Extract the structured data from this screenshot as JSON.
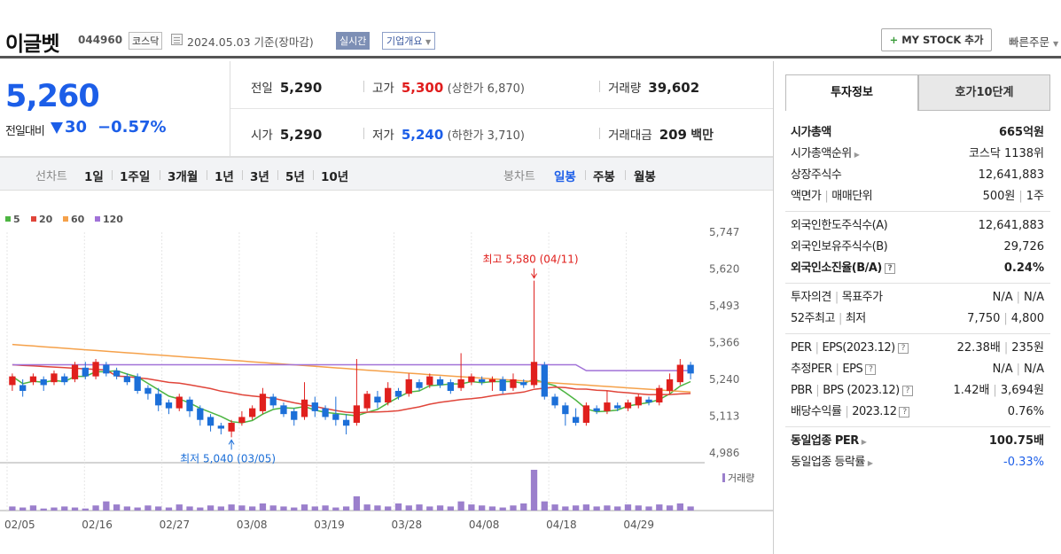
{
  "header": {
    "title": "이글벳",
    "code": "044960",
    "market": "코스닥",
    "date": "2024.05.03  기준(장마감)",
    "realtime": "실시간",
    "company_info": "기업개요",
    "mystock": "MY STOCK 추가",
    "quick_order": "빠른주문"
  },
  "price": {
    "current": "5,260",
    "change_label": "전일대비",
    "change": "30",
    "change_pct": "−0.57%",
    "prev_close_label": "전일",
    "prev_close": "5,290",
    "high_label": "고가",
    "high": "5,300",
    "upper_limit": "(상한가 6,870)",
    "volume_label": "거래량",
    "volume": "39,602",
    "open_label": "시가",
    "open": "5,290",
    "low_label": "저가",
    "low": "5,240",
    "lower_limit": "(하한가 3,710)",
    "amount_label": "거래대금",
    "amount": "209",
    "amount_unit": "백만"
  },
  "periods": {
    "line_label": "선차트",
    "line_items": [
      "1일",
      "1주일",
      "3개월",
      "1년",
      "3년",
      "5년",
      "10년"
    ],
    "candle_label": "봉차트",
    "candle_items": [
      "일봉",
      "주봉",
      "월봉"
    ],
    "candle_active": "일봉"
  },
  "tabs": [
    "투자정보",
    "호가10단계"
  ],
  "info": {
    "market_cap_label": "시가총액",
    "market_cap": "665억원",
    "cap_rank_label": "시가총액순위",
    "cap_rank": "코스닥 1138위",
    "shares_label": "상장주식수",
    "shares": "12,641,883",
    "par_label": "액면가",
    "unit_label": "매매단위",
    "par_unit": "500원",
    "unit_val": "1주",
    "foreign_limit_label": "외국인한도주식수(A)",
    "foreign_limit": "12,641,883",
    "foreign_hold_label": "외국인보유주식수(B)",
    "foreign_hold": "29,726",
    "foreign_ratio_label": "외국인소진율(B/A)",
    "foreign_ratio": "0.24%",
    "opinion_label": "투자의견",
    "target_label": "목표주가",
    "opinion": "N/A",
    "target": "N/A",
    "wk52_label": "52주최고",
    "wk52_low_label": "최저",
    "wk52_high": "7,750",
    "wk52_low": "4,800",
    "per_label": "PER",
    "eps_label": "EPS(2023.12)",
    "per": "22.38배",
    "eps": "235원",
    "est_per_label": "추정PER",
    "est_eps_label": "EPS",
    "est_per": "N/A",
    "est_eps": "N/A",
    "pbr_label": "PBR",
    "bps_label": "BPS (2023.12)",
    "pbr": "1.42배",
    "bps": "3,694원",
    "div_label": "배당수익률",
    "div_date": "2023.12",
    "div": "0.76%",
    "ind_per_label": "동일업종 PER",
    "ind_per": "100.75배",
    "ind_rate_label": "동일업종 등락률",
    "ind_rate": "-0.33%"
  },
  "chart_data": {
    "type": "candlestick",
    "legend": [
      {
        "name": "5",
        "color": "#4db542"
      },
      {
        "name": "20",
        "color": "#e0453a"
      },
      {
        "name": "60",
        "color": "#f5a14a"
      },
      {
        "name": "120",
        "color": "#a172d8"
      }
    ],
    "y_ticks": [
      "5,747",
      "5,620",
      "5,493",
      "5,366",
      "5,240",
      "5,113",
      "4,986"
    ],
    "y_range": [
      4986,
      5747
    ],
    "x_ticks": [
      "02/05",
      "02/16",
      "02/27",
      "03/08",
      "03/19",
      "03/28",
      "04/08",
      "04/18",
      "04/29"
    ],
    "annotations": {
      "high": "최고 5,580 (04/11)",
      "low": "최저 5,040 (03/05)"
    },
    "volume_label": "거래량",
    "candles": [
      [
        5220,
        5250,
        5200,
        5260
      ],
      [
        5220,
        5200,
        5180,
        5240
      ],
      [
        5230,
        5250,
        5220,
        5260
      ],
      [
        5240,
        5220,
        5200,
        5250
      ],
      [
        5230,
        5260,
        5220,
        5270
      ],
      [
        5250,
        5230,
        5220,
        5260
      ],
      [
        5240,
        5290,
        5230,
        5300
      ],
      [
        5280,
        5250,
        5240,
        5300
      ],
      [
        5250,
        5300,
        5240,
        5310
      ],
      [
        5290,
        5260,
        5250,
        5300
      ],
      [
        5270,
        5250,
        5240,
        5280
      ],
      [
        5250,
        5230,
        5220,
        5260
      ],
      [
        5250,
        5200,
        5190,
        5260
      ],
      [
        5210,
        5190,
        5170,
        5220
      ],
      [
        5190,
        5150,
        5130,
        5210
      ],
      [
        5160,
        5140,
        5120,
        5170
      ],
      [
        5140,
        5180,
        5130,
        5190
      ],
      [
        5170,
        5130,
        5110,
        5180
      ],
      [
        5140,
        5100,
        5080,
        5150
      ],
      [
        5110,
        5080,
        5060,
        5120
      ],
      [
        5080,
        5070,
        5050,
        5090
      ],
      [
        5060,
        5090,
        5040,
        5100
      ],
      [
        5090,
        5110,
        5080,
        5130
      ],
      [
        5110,
        5140,
        5100,
        5150
      ],
      [
        5130,
        5190,
        5120,
        5210
      ],
      [
        5180,
        5150,
        5140,
        5190
      ],
      [
        5150,
        5120,
        5110,
        5160
      ],
      [
        5130,
        5100,
        5080,
        5140
      ],
      [
        5110,
        5170,
        5100,
        5230
      ],
      [
        5160,
        5130,
        5110,
        5180
      ],
      [
        5140,
        5110,
        5100,
        5150
      ],
      [
        5120,
        5100,
        5080,
        5180
      ],
      [
        5100,
        5080,
        5050,
        5120
      ],
      [
        5090,
        5150,
        5080,
        5310
      ],
      [
        5140,
        5190,
        5130,
        5200
      ],
      [
        5180,
        5160,
        5140,
        5200
      ],
      [
        5160,
        5210,
        5150,
        5230
      ],
      [
        5200,
        5180,
        5170,
        5210
      ],
      [
        5190,
        5240,
        5180,
        5260
      ],
      [
        5230,
        5210,
        5200,
        5240
      ],
      [
        5220,
        5250,
        5210,
        5260
      ],
      [
        5240,
        5220,
        5210,
        5250
      ],
      [
        5230,
        5200,
        5190,
        5240
      ],
      [
        5210,
        5240,
        5200,
        5330
      ],
      [
        5230,
        5250,
        5220,
        5260
      ],
      [
        5240,
        5230,
        5220,
        5250
      ],
      [
        5230,
        5240,
        5200,
        5250
      ],
      [
        5240,
        5200,
        5190,
        5250
      ],
      [
        5210,
        5240,
        5200,
        5260
      ],
      [
        5230,
        5220,
        5210,
        5240
      ],
      [
        5220,
        5300,
        5210,
        5580
      ],
      [
        5290,
        5180,
        5170,
        5300
      ],
      [
        5180,
        5150,
        5140,
        5190
      ],
      [
        5150,
        5120,
        5080,
        5160
      ],
      [
        5110,
        5090,
        5080,
        5140
      ],
      [
        5090,
        5150,
        5080,
        5160
      ],
      [
        5140,
        5130,
        5120,
        5150
      ],
      [
        5130,
        5160,
        5120,
        5200
      ],
      [
        5150,
        5140,
        5130,
        5160
      ],
      [
        5140,
        5160,
        5130,
        5170
      ],
      [
        5150,
        5180,
        5140,
        5190
      ],
      [
        5170,
        5160,
        5150,
        5180
      ],
      [
        5160,
        5210,
        5150,
        5220
      ],
      [
        5200,
        5240,
        5190,
        5260
      ],
      [
        5230,
        5290,
        5220,
        5310
      ],
      [
        5290,
        5260,
        5240,
        5300
      ]
    ],
    "volumes": [
      4,
      3,
      5,
      2,
      3,
      4,
      3,
      2,
      5,
      9,
      6,
      4,
      3,
      5,
      4,
      3,
      6,
      4,
      3,
      5,
      4,
      6,
      5,
      4,
      7,
      5,
      4,
      3,
      6,
      4,
      5,
      3,
      4,
      14,
      6,
      5,
      4,
      7,
      5,
      6,
      4,
      5,
      4,
      9,
      6,
      5,
      4,
      3,
      5,
      7,
      40,
      9,
      6,
      4,
      5,
      6,
      4,
      5,
      4,
      6,
      5,
      4,
      6,
      5,
      7,
      4
    ]
  }
}
